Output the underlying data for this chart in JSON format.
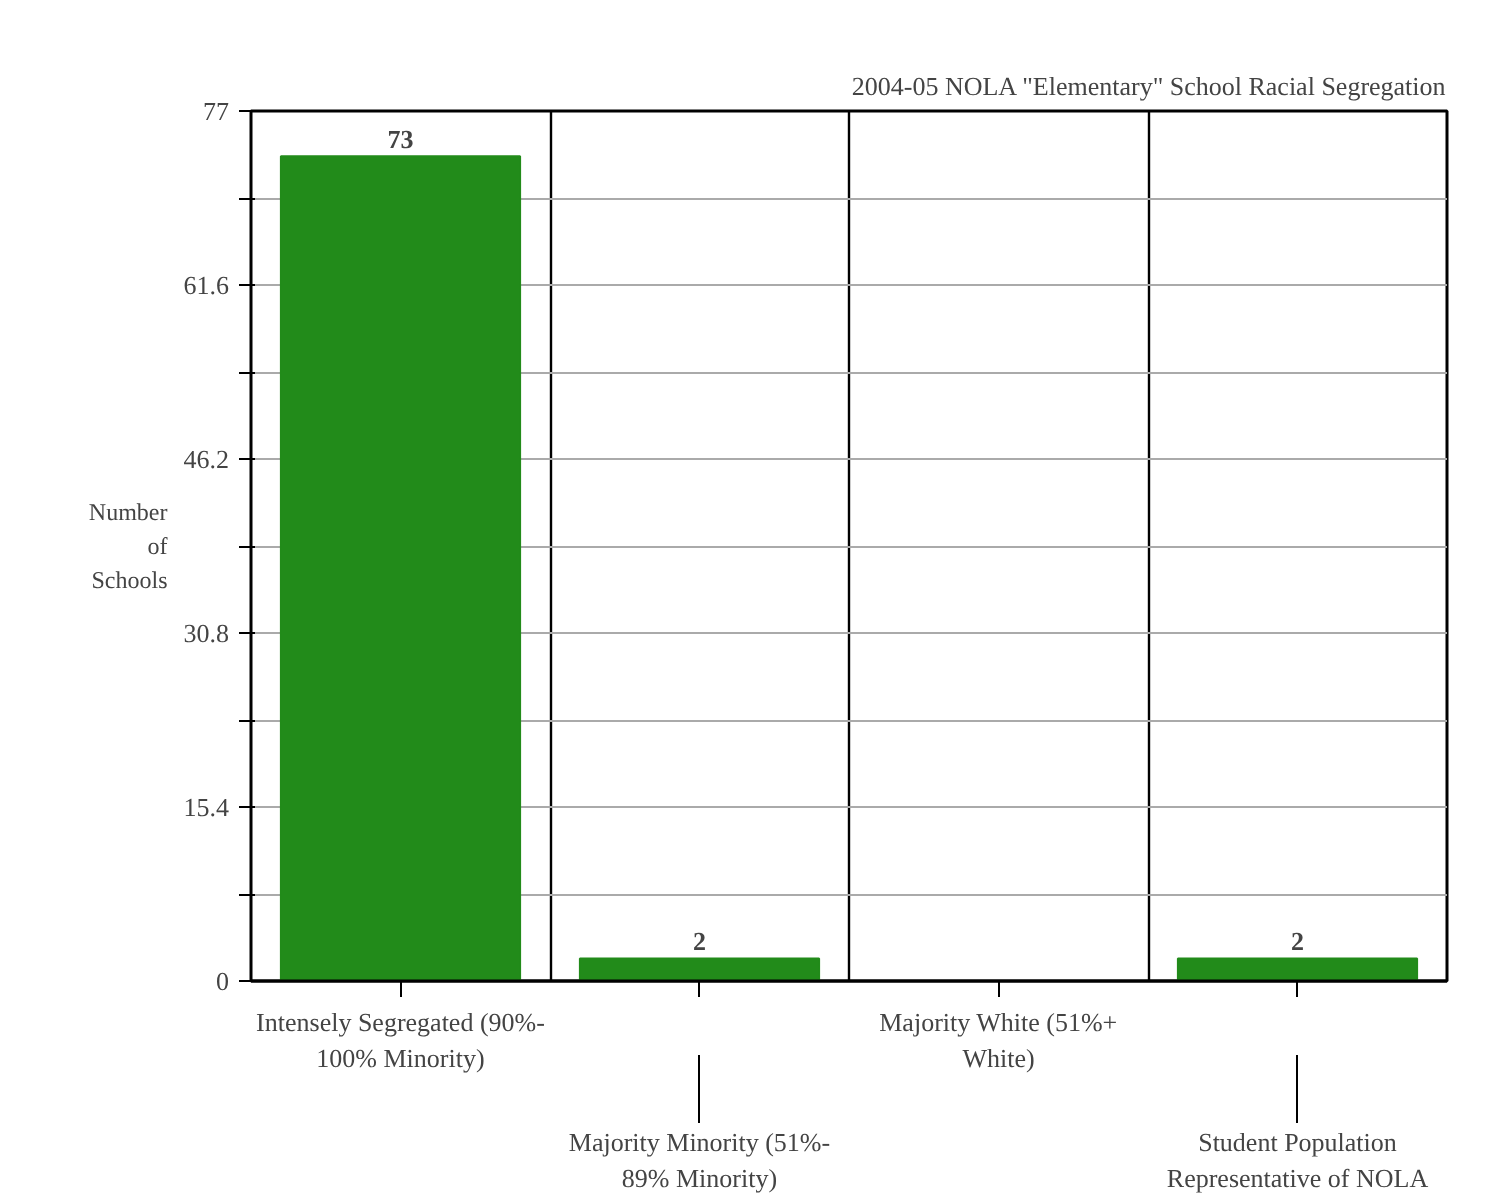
{
  "chart_data": {
    "type": "bar",
    "title": "2004-05 NOLA \"Elementary\" School Racial Segregation",
    "ylabel": "Number\nof\nSchools",
    "categories": [
      "Intensely Segregated (90%-\n100% Minority)",
      "Majority Minority (51%-\n89% Minority)",
      "Majority White (51%+\nWhite)",
      "Student Population\nRepresentative of NOLA"
    ],
    "values": [
      73,
      2,
      0,
      2
    ],
    "value_labels": [
      "73",
      "2",
      null,
      "2"
    ],
    "color": "#228b1a",
    "ylim": [
      0,
      77
    ],
    "yticks": [
      0,
      {
        "value": 7.7,
        "label": null
      },
      15.4,
      {
        "value": 23.1,
        "label": null
      },
      30.8,
      {
        "value": 38.5,
        "label": null
      },
      46.2,
      {
        "value": 53.9,
        "label": null
      },
      61.6,
      {
        "value": 69.3,
        "label": null
      },
      77
    ],
    "grid": "y"
  }
}
